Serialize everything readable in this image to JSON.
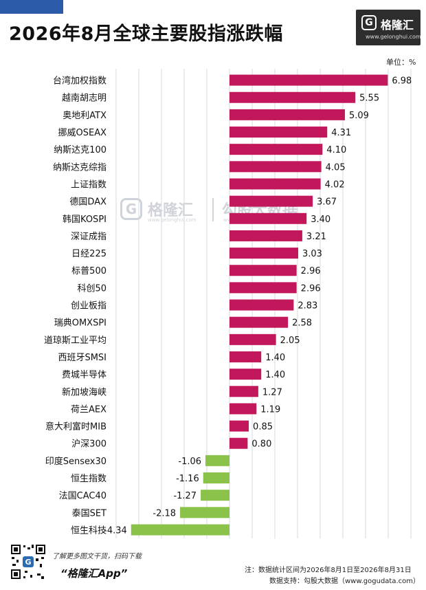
{
  "header": {
    "title": "2026年8月全球主要股指涨跌幅",
    "logo_glyph": "G",
    "logo_name": "格隆汇",
    "logo_url": "www.gelonghui.com"
  },
  "watermark": {
    "glyph": "G",
    "name": "格隆汇",
    "url": "www.gelonghui.com",
    "name2": "勾股大数据",
    "url2": "www.gogudata.com"
  },
  "chart_data": {
    "type": "bar",
    "orientation": "horizontal",
    "unit_label": "单位：%",
    "categories": [
      "台湾加权指数",
      "越南胡志明",
      "奥地利ATX",
      "挪威OSEAX",
      "纳斯达克100",
      "纳斯达克综指",
      "上证指数",
      "德国DAX",
      "韩国KOSPI",
      "深证成指",
      "日经225",
      "标普500",
      "科创50",
      "创业板指",
      "瑞典OMXSPI",
      "道琼斯工业平均",
      "西班牙SMSI",
      "费城半导体",
      "新加坡海峡",
      "荷兰AEX",
      "意大利富时MIB",
      "沪深300",
      "印度Sensex30",
      "恒生指数",
      "法国CAC40",
      "泰国SET",
      "恒生科技"
    ],
    "values": [
      6.98,
      5.55,
      5.09,
      4.31,
      4.1,
      4.05,
      4.02,
      3.67,
      3.4,
      3.21,
      3.03,
      2.96,
      2.96,
      2.83,
      2.58,
      2.05,
      1.4,
      1.4,
      1.27,
      1.19,
      0.85,
      0.8,
      -1.06,
      -1.16,
      -1.27,
      -2.18,
      -4.34
    ],
    "value_labels": [
      "6.98",
      "5.55",
      "5.09",
      "4.31",
      "4.10",
      "4.05",
      "4.02",
      "3.67",
      "3.40",
      "3.21",
      "3.03",
      "2.96",
      "2.96",
      "2.83",
      "2.58",
      "2.05",
      "1.40",
      "1.40",
      "1.27",
      "1.19",
      "0.85",
      "0.80",
      "-1.06",
      "-1.16",
      "-1.27",
      "-2.18",
      "-4.34"
    ],
    "xlim": [
      -5,
      9
    ],
    "grid": true,
    "positive_color": "#c2185b",
    "negative_color": "#8bc34a",
    "gridline_color": "#d3d8e3"
  },
  "footer": {
    "promo_line1": "了解更多图文干货，扫码下载",
    "promo_line2": "“格隆汇App”",
    "note_line1": "注：数据统计区间为2026年8月1日至2026年8月31日",
    "note_line2": "数据支持：勾股大数据（www.gogudata.com）"
  }
}
